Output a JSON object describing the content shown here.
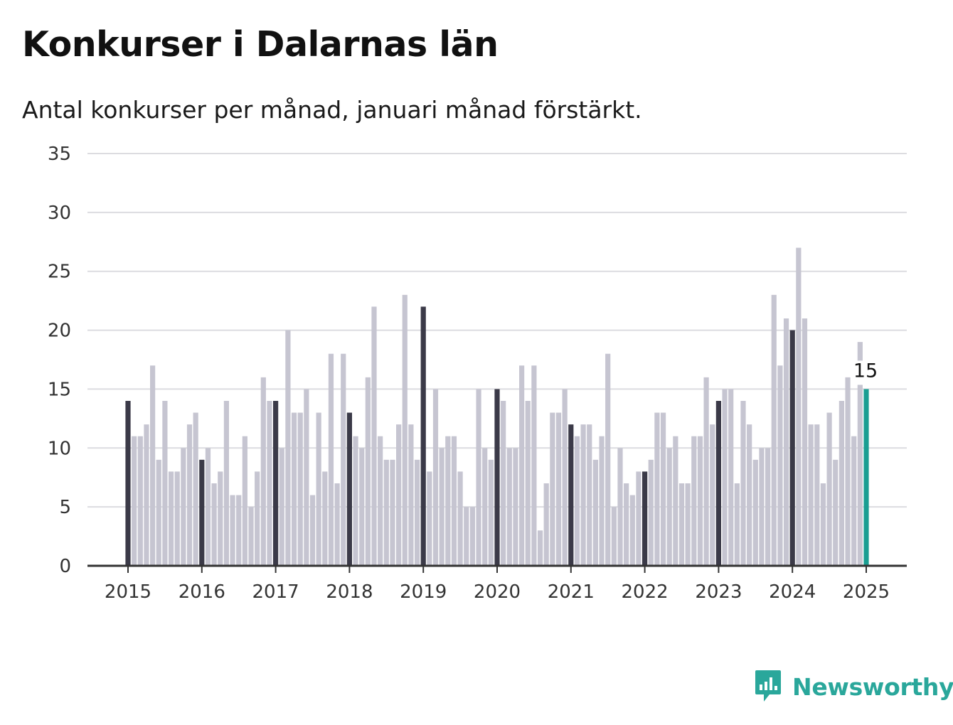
{
  "title": "Konkurser i Dalarnas län",
  "subtitle": "Antal konkurser per månad, januari månad förstärkt.",
  "brand": {
    "name": "Newsworthy",
    "logo_icon": "bar-chart-speech-bubble-icon"
  },
  "colors": {
    "bar": "#c6c5d1",
    "january": "#3b3a48",
    "latest": "#1a9e92",
    "grid": "#dcdce0",
    "axis": "#333333",
    "brand": "#2aa79b"
  },
  "chart_data": {
    "type": "bar",
    "title": "Konkurser i Dalarnas län",
    "subtitle": "Antal konkurser per månad, januari månad förstärkt.",
    "xlabel": "",
    "ylabel": "",
    "start": "2015-01",
    "x_ticks": [
      "2015",
      "2016",
      "2017",
      "2018",
      "2019",
      "2020",
      "2021",
      "2022",
      "2023",
      "2024",
      "2025"
    ],
    "y_ticks": [
      0,
      5,
      10,
      15,
      20,
      25,
      30,
      35
    ],
    "ylim": [
      0,
      35
    ],
    "grid": true,
    "highlight": "January months darker; latest month teal with value label",
    "latest_label": "15",
    "values": [
      14,
      11,
      11,
      12,
      17,
      9,
      14,
      8,
      8,
      10,
      12,
      13,
      9,
      10,
      7,
      8,
      14,
      6,
      6,
      11,
      5,
      8,
      16,
      14,
      14,
      10,
      20,
      13,
      13,
      15,
      6,
      13,
      8,
      18,
      7,
      18,
      13,
      11,
      10,
      16,
      22,
      11,
      9,
      9,
      12,
      23,
      12,
      9,
      22,
      8,
      15,
      10,
      11,
      11,
      8,
      5,
      5,
      15,
      10,
      9,
      15,
      14,
      10,
      10,
      17,
      14,
      17,
      3,
      7,
      13,
      13,
      15,
      12,
      11,
      12,
      12,
      9,
      11,
      18,
      5,
      10,
      7,
      6,
      8,
      8,
      9,
      13,
      13,
      10,
      11,
      7,
      7,
      11,
      11,
      16,
      12,
      14,
      15,
      15,
      7,
      14,
      12,
      9,
      10,
      10,
      23,
      17,
      21,
      20,
      27,
      21,
      12,
      12,
      7,
      13,
      9,
      14,
      16,
      11,
      19,
      15
    ]
  }
}
